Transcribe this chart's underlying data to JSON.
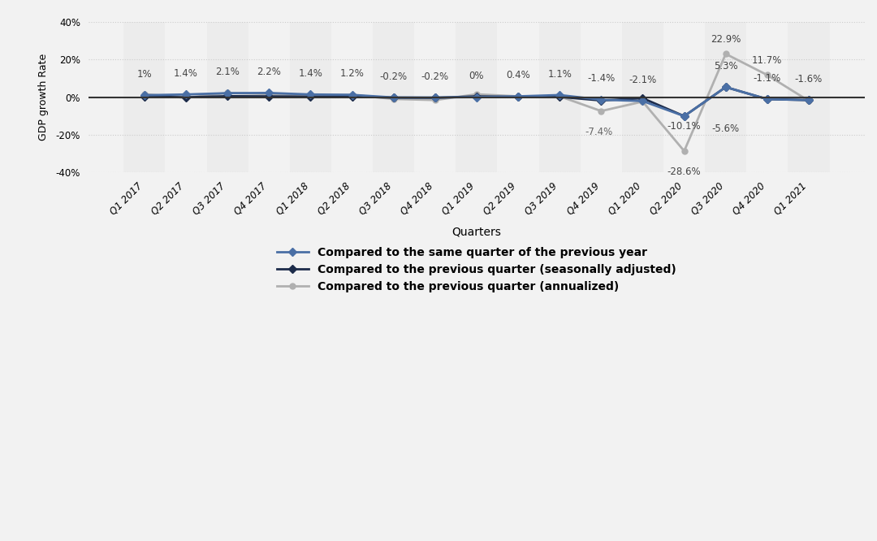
{
  "quarters": [
    "Q1 2017",
    "Q2 2017",
    "Q3 2017",
    "Q4 2017",
    "Q1 2018",
    "Q2 2018",
    "Q3 2018",
    "Q4 2018",
    "Q1 2019",
    "Q2 2019",
    "Q3 2019",
    "Q4 2019",
    "Q1 2020",
    "Q2 2020",
    "Q3 2020",
    "Q4 2020",
    "Q1 2021"
  ],
  "same_qtr": [
    1.0,
    1.4,
    2.1,
    2.2,
    1.4,
    1.2,
    -0.2,
    -0.2,
    0.0,
    0.4,
    1.1,
    -1.4,
    -2.1,
    -10.1,
    5.3,
    -1.1,
    -1.6
  ],
  "prev_seasonal": [
    0.3,
    -0.1,
    0.5,
    0.4,
    0.2,
    0.3,
    -0.3,
    -0.4,
    0.4,
    0.1,
    0.1,
    -1.8,
    -0.6,
    -10.1,
    5.3,
    -1.1,
    -1.6
  ],
  "prev_annualized": [
    1.6,
    -0.4,
    2.2,
    1.6,
    0.9,
    1.2,
    -1.0,
    -1.6,
    1.5,
    0.4,
    0.4,
    -7.4,
    -2.4,
    -28.6,
    22.9,
    11.7,
    -2.0
  ],
  "color_blue": "#4a6fa5",
  "color_dark": "#1c2b4a",
  "color_gray": "#b0b0b0",
  "bg_color": "#f2f2f2",
  "ylabel": "GDP growth Rate",
  "xlabel": "Quarters",
  "legend1": "Compared to the same quarter of the previous year",
  "legend2": "Compared to the previous quarter (seasonally adjusted)",
  "legend3": "Compared to the previous quarter (annualized)",
  "ylim_min": -40,
  "ylim_max": 40,
  "yticks": [
    -40,
    -20,
    0,
    20,
    40
  ],
  "top_labels": [
    "1%",
    "1.4%",
    "2.1%",
    "2.2%",
    "1.4%",
    "1.2%",
    "-0.2%",
    "-0.2%",
    "0%",
    "0.4%",
    "1.1%",
    "-1.4%",
    "-2.1%",
    "-10.1%",
    "5.3%",
    "-1.1%",
    "-1.6%"
  ],
  "top_label_y_offset": [
    3.5,
    3.5,
    3.5,
    3.5,
    3.5,
    3.5,
    3.5,
    3.5,
    3.5,
    3.5,
    3.5,
    3.5,
    3.5,
    -3.5,
    3.5,
    3.5,
    3.5
  ]
}
